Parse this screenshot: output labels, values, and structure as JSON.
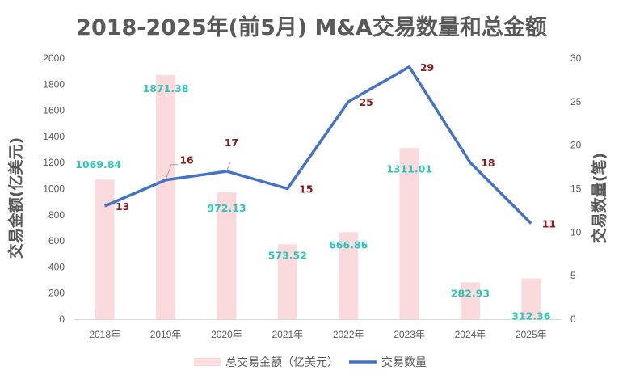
{
  "chart_data": {
    "type": "bar+line",
    "title": "2018-2025年(前5月) M&A交易数量和总金额",
    "categories": [
      "2018年",
      "2019年",
      "2020年",
      "2021年",
      "2022年",
      "2023年",
      "2024年",
      "2025年"
    ],
    "series": [
      {
        "name": "总交易金额（亿美元）",
        "type": "bar",
        "axis": "left",
        "color": "#FADADD",
        "values": [
          1069.84,
          1871.38,
          972.13,
          573.52,
          666.86,
          1311.01,
          282.93,
          312.36
        ],
        "labels": [
          "1069.84",
          "1871.38",
          "972.13",
          "573.52",
          "666.86",
          "1311.01",
          "282.93",
          "312.36"
        ]
      },
      {
        "name": "交易数量",
        "type": "line",
        "axis": "right",
        "color": "#4472C4",
        "values": [
          13,
          16,
          17,
          15,
          25,
          29,
          18,
          11
        ],
        "labels": [
          "13",
          "16",
          "17",
          "15",
          "25",
          "29",
          "18",
          "11"
        ]
      }
    ],
    "ylabel": "交易金额(亿美元)",
    "y2label": "交易数量(笔)",
    "ylim": [
      0,
      2000
    ],
    "y2lim": [
      0,
      30
    ],
    "yticks": [
      "0",
      "200",
      "400",
      "600",
      "800",
      "1000",
      "1200",
      "1400",
      "1600",
      "1800",
      "2000"
    ],
    "y2ticks": [
      "0",
      "5",
      "10",
      "15",
      "20",
      "25",
      "30"
    ],
    "grid": false,
    "legend": "bottom",
    "label_colors": {
      "bar": "#2EC4B6",
      "line": "#8B1A1A"
    }
  }
}
